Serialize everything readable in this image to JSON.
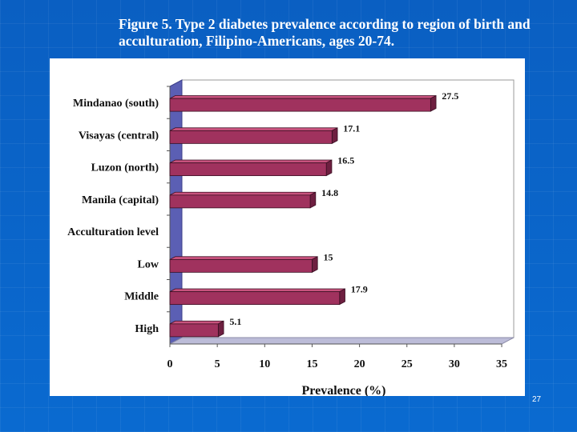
{
  "slide": {
    "title": "Figure 5. Type 2 diabetes prevalence according to region of birth and acculturation, Filipino-Americans, ages 20-74.",
    "page_number": "27"
  },
  "colors": {
    "background": "#0b63c4",
    "bar_front": "#a0325e",
    "bar_top": "#c8527d",
    "bar_side": "#6e1f40",
    "floor": "#bcbcd8",
    "back_wall": "#ffffff",
    "side_wall": "#5b5fb4"
  },
  "chart_data": {
    "type": "bar",
    "orientation": "horizontal",
    "style": "3d",
    "title": "",
    "xlabel": "Prevalence (%)",
    "ylabel": "",
    "xlim": [
      0,
      35
    ],
    "xticks": [
      0,
      5,
      10,
      15,
      20,
      25,
      30,
      35
    ],
    "categories": [
      "Mindanao (south)",
      "Visayas (central)",
      "Luzon (north)",
      "Manila (capital)",
      "Acculturation level",
      "Low",
      "Middle",
      "High"
    ],
    "values": [
      27.5,
      17.1,
      16.5,
      14.8,
      null,
      15,
      17.9,
      5.1
    ],
    "data_labels": [
      "27.5",
      "17.1",
      "16.5",
      "14.8",
      "",
      "15",
      "17.9",
      "5.1"
    ],
    "grid": false,
    "legend": "none"
  }
}
